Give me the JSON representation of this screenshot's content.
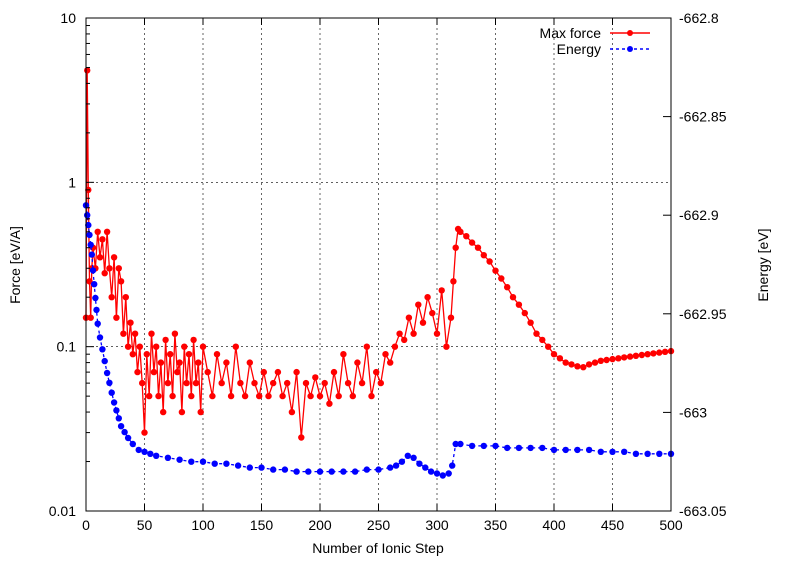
{
  "chart_data": {
    "type": "line",
    "xlabel": "Number of Ionic Step",
    "ylabel_left": "Force [eV/A]",
    "ylabel_right": "Energy [eV]",
    "xlim": [
      0,
      500
    ],
    "ylim_left": [
      0.01,
      10
    ],
    "ylim_right": [
      -663.05,
      -662.8
    ],
    "log_scale_left": true,
    "grid": true,
    "legend_placement": "top-right",
    "x_ticks": [
      "0",
      "50",
      "100",
      "150",
      "200",
      "250",
      "300",
      "350",
      "400",
      "450",
      "500"
    ],
    "y_left_ticks": [
      "0.01",
      "0.1",
      "1",
      "10"
    ],
    "y_right_ticks": [
      "-663.05",
      "-663",
      "-662.95",
      "-662.9",
      "-662.85",
      "-662.8"
    ],
    "series": [
      {
        "name": "Max force",
        "axis": "left",
        "color": "#ff0000",
        "line_style": "solid",
        "x": [
          0,
          1,
          2,
          3,
          4,
          5,
          6,
          8,
          10,
          12,
          14,
          16,
          18,
          20,
          22,
          24,
          26,
          28,
          30,
          32,
          34,
          36,
          38,
          40,
          42,
          44,
          46,
          48,
          50,
          52,
          54,
          56,
          58,
          60,
          62,
          64,
          66,
          68,
          70,
          72,
          74,
          76,
          78,
          80,
          82,
          84,
          86,
          88,
          90,
          92,
          94,
          96,
          98,
          100,
          104,
          108,
          112,
          116,
          120,
          124,
          128,
          132,
          136,
          140,
          144,
          148,
          152,
          156,
          160,
          164,
          168,
          172,
          176,
          180,
          184,
          188,
          192,
          196,
          200,
          204,
          208,
          212,
          216,
          220,
          224,
          228,
          232,
          236,
          240,
          244,
          248,
          252,
          256,
          260,
          264,
          268,
          272,
          276,
          280,
          284,
          288,
          292,
          296,
          300,
          304,
          308,
          312,
          314,
          316,
          318,
          320,
          325,
          330,
          335,
          340,
          345,
          350,
          355,
          360,
          365,
          370,
          375,
          380,
          385,
          390,
          395,
          400,
          405,
          410,
          415,
          420,
          425,
          430,
          435,
          440,
          445,
          450,
          455,
          460,
          465,
          470,
          475,
          480,
          485,
          490,
          495,
          500
        ],
        "values": [
          0.15,
          4.8,
          0.9,
          0.25,
          0.15,
          0.3,
          0.4,
          0.3,
          0.5,
          0.35,
          0.45,
          0.28,
          0.5,
          0.3,
          0.2,
          0.35,
          0.15,
          0.3,
          0.25,
          0.12,
          0.2,
          0.1,
          0.14,
          0.09,
          0.12,
          0.07,
          0.1,
          0.06,
          0.03,
          0.09,
          0.05,
          0.12,
          0.07,
          0.1,
          0.05,
          0.08,
          0.04,
          0.11,
          0.06,
          0.09,
          0.05,
          0.12,
          0.07,
          0.08,
          0.04,
          0.1,
          0.06,
          0.09,
          0.05,
          0.11,
          0.06,
          0.08,
          0.04,
          0.1,
          0.07,
          0.05,
          0.09,
          0.06,
          0.08,
          0.05,
          0.1,
          0.06,
          0.05,
          0.08,
          0.06,
          0.05,
          0.07,
          0.05,
          0.06,
          0.07,
          0.05,
          0.06,
          0.04,
          0.07,
          0.028,
          0.06,
          0.05,
          0.065,
          0.05,
          0.06,
          0.045,
          0.07,
          0.05,
          0.09,
          0.06,
          0.05,
          0.08,
          0.06,
          0.1,
          0.05,
          0.07,
          0.06,
          0.09,
          0.08,
          0.1,
          0.12,
          0.11,
          0.15,
          0.12,
          0.18,
          0.14,
          0.2,
          0.16,
          0.12,
          0.22,
          0.1,
          0.15,
          0.25,
          0.4,
          0.52,
          0.5,
          0.47,
          0.43,
          0.4,
          0.36,
          0.33,
          0.29,
          0.26,
          0.23,
          0.2,
          0.18,
          0.16,
          0.14,
          0.12,
          0.11,
          0.1,
          0.09,
          0.085,
          0.08,
          0.078,
          0.076,
          0.075,
          0.078,
          0.08,
          0.082,
          0.083,
          0.084,
          0.085,
          0.086,
          0.087,
          0.088,
          0.089,
          0.09,
          0.091,
          0.092,
          0.093,
          0.094
        ]
      },
      {
        "name": "Energy",
        "axis": "right",
        "color": "#0000ff",
        "line_style": "dashed",
        "x": [
          0,
          1,
          2,
          3,
          4,
          5,
          6,
          7,
          8,
          9,
          10,
          12,
          14,
          16,
          18,
          20,
          22,
          24,
          26,
          28,
          30,
          33,
          36,
          40,
          45,
          50,
          55,
          60,
          70,
          80,
          90,
          100,
          110,
          120,
          130,
          140,
          150,
          160,
          170,
          180,
          190,
          200,
          210,
          220,
          230,
          240,
          250,
          260,
          265,
          270,
          275,
          280,
          285,
          290,
          295,
          300,
          305,
          310,
          313,
          316,
          320,
          330,
          340,
          350,
          360,
          370,
          380,
          390,
          400,
          410,
          420,
          430,
          440,
          450,
          460,
          470,
          480,
          490,
          500
        ],
        "values": [
          -662.895,
          -662.9,
          -662.905,
          -662.91,
          -662.915,
          -662.92,
          -662.928,
          -662.935,
          -662.942,
          -662.948,
          -662.955,
          -662.962,
          -662.968,
          -662.974,
          -662.98,
          -662.985,
          -662.99,
          -662.995,
          -662.999,
          -663.003,
          -663.007,
          -663.01,
          -663.013,
          -663.016,
          -663.019,
          -663.02,
          -663.021,
          -663.022,
          -663.023,
          -663.024,
          -663.025,
          -663.025,
          -663.026,
          -663.026,
          -663.027,
          -663.028,
          -663.028,
          -663.029,
          -663.029,
          -663.03,
          -663.03,
          -663.03,
          -663.03,
          -663.03,
          -663.03,
          -663.029,
          -663.029,
          -663.028,
          -663.027,
          -663.025,
          -663.022,
          -663.023,
          -663.026,
          -663.028,
          -663.03,
          -663.031,
          -663.032,
          -663.031,
          -663.027,
          -663.016,
          -663.016,
          -663.017,
          -663.017,
          -663.017,
          -663.018,
          -663.018,
          -663.018,
          -663.018,
          -663.019,
          -663.019,
          -663.019,
          -663.019,
          -663.02,
          -663.02,
          -663.02,
          -663.021,
          -663.021,
          -663.021,
          -663.021
        ]
      }
    ]
  }
}
